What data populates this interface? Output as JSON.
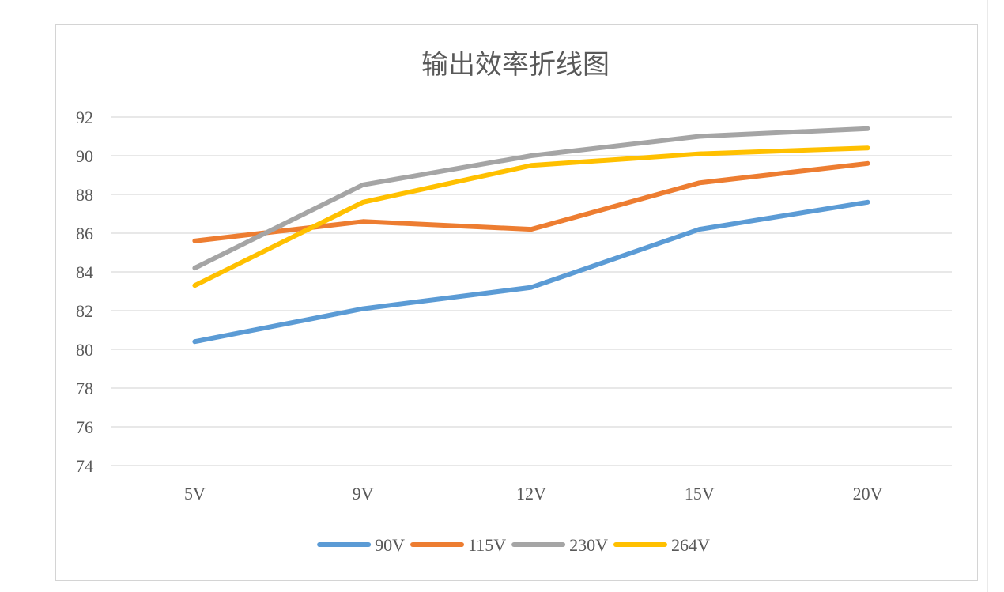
{
  "chart_data": {
    "type": "line",
    "title": "输出效率折线图",
    "xlabel": "",
    "ylabel": "",
    "categories": [
      "5V",
      "9V",
      "12V",
      "15V",
      "20V"
    ],
    "ylim": [
      74,
      92
    ],
    "yticks": [
      74,
      76,
      78,
      80,
      82,
      84,
      86,
      88,
      90,
      92
    ],
    "grid": true,
    "legend_position": "bottom",
    "series": [
      {
        "name": "90V",
        "color": "#5b9bd5",
        "values": [
          80.4,
          82.1,
          83.2,
          86.2,
          87.6
        ]
      },
      {
        "name": "115V",
        "color": "#ed7d31",
        "values": [
          85.6,
          86.6,
          86.2,
          88.6,
          89.6
        ]
      },
      {
        "name": "230V",
        "color": "#a5a5a5",
        "values": [
          84.2,
          88.5,
          90.0,
          91.0,
          91.4
        ]
      },
      {
        "name": "264V",
        "color": "#ffc000",
        "values": [
          83.3,
          87.6,
          89.5,
          90.1,
          90.4
        ]
      }
    ]
  }
}
